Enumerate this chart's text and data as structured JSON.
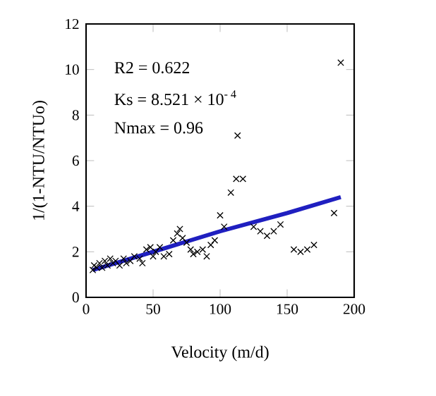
{
  "chart_data": {
    "type": "scatter",
    "xlabel": "Velocity (m/d)",
    "ylabel": "1/(1-NTU/NTUo)",
    "annotations": [
      "R2 = 0.622",
      "Ks = 8.521 × 10$^{- 4}$",
      "Nmax = 0.96"
    ],
    "xlim": [
      0,
      200
    ],
    "xticks": [
      0,
      50,
      100,
      150,
      200
    ],
    "ylim": [
      0,
      12
    ],
    "yticks": [
      0,
      2,
      4,
      6,
      8,
      10,
      12
    ],
    "grid": false,
    "series": [
      {
        "marker": "cross",
        "color": "#000000",
        "x": [
          5,
          6,
          8,
          10,
          12,
          14,
          16,
          18,
          20,
          22,
          25,
          28,
          30,
          33,
          36,
          40,
          42,
          45,
          48,
          50,
          52,
          55,
          58,
          62,
          65,
          68,
          70,
          72,
          75,
          78,
          80,
          83,
          87,
          90,
          93,
          96,
          100,
          103,
          108,
          112,
          113,
          117,
          125,
          130,
          135,
          140,
          145,
          155,
          160,
          165,
          170,
          185,
          190
        ],
        "values": [
          1.2,
          1.4,
          1.3,
          1.5,
          1.3,
          1.6,
          1.4,
          1.7,
          1.5,
          1.6,
          1.4,
          1.7,
          1.5,
          1.6,
          1.8,
          1.7,
          1.5,
          2.1,
          2.2,
          1.8,
          2.0,
          2.2,
          1.8,
          1.9,
          2.5,
          2.8,
          3.0,
          2.6,
          2.4,
          2.1,
          1.9,
          2.0,
          2.1,
          1.8,
          2.3,
          2.5,
          3.6,
          3.1,
          4.6,
          5.2,
          7.1,
          5.2,
          3.1,
          2.9,
          2.7,
          2.9,
          3.2,
          2.1,
          2.0,
          2.1,
          2.3,
          3.7,
          10.3
        ]
      },
      {
        "type": "line",
        "color": "#1f1fc0",
        "x": [
          5,
          50,
          100,
          150,
          190
        ],
        "values": [
          1.2,
          2.0,
          2.9,
          3.7,
          4.4
        ]
      }
    ]
  }
}
